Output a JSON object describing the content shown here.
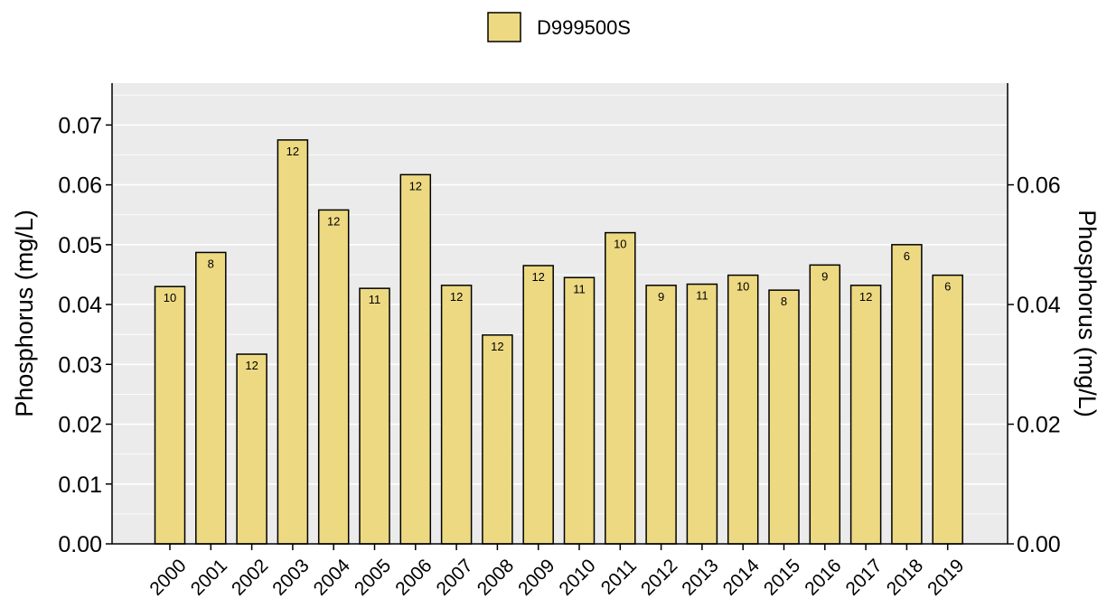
{
  "chart_data": {
    "type": "bar",
    "title": "",
    "xlabel": "",
    "ylabel": "Phosphorus (mg/L)",
    "ylabel_right": "Phosphorus (mg/L)",
    "ylim": [
      0,
      0.077
    ],
    "y_ticks": [
      "0.00",
      "0.01",
      "0.02",
      "0.03",
      "0.04",
      "0.05",
      "0.06",
      "0.07"
    ],
    "y_ticks_right": [
      "0.00",
      "0.02",
      "0.04",
      "0.06"
    ],
    "grid": true,
    "legend_position": "top",
    "categories": [
      "2000",
      "2001",
      "2002",
      "2003",
      "2004",
      "2005",
      "2006",
      "2007",
      "2008",
      "2009",
      "2010",
      "2011",
      "2012",
      "2013",
      "2014",
      "2015",
      "2016",
      "2017",
      "2018",
      "2019"
    ],
    "series": [
      {
        "name": "D999500S",
        "color": "#EDD982",
        "values": [
          0.043,
          0.0487,
          0.0317,
          0.0675,
          0.0558,
          0.0427,
          0.0617,
          0.0432,
          0.0349,
          0.0465,
          0.0445,
          0.052,
          0.0432,
          0.0434,
          0.0449,
          0.0424,
          0.0466,
          0.0432,
          0.05,
          0.0449
        ],
        "labels": [
          "10",
          "8",
          "12",
          "12",
          "12",
          "11",
          "12",
          "12",
          "12",
          "12",
          "11",
          "10",
          "9",
          "11",
          "10",
          "8",
          "9",
          "12",
          "6",
          "6"
        ]
      }
    ]
  }
}
